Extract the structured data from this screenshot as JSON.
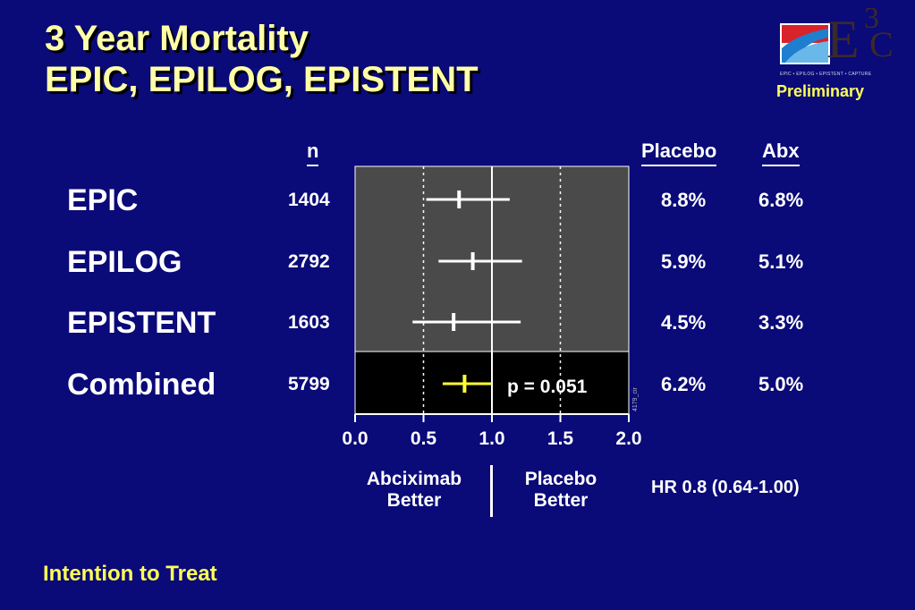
{
  "slide": {
    "title_line1": "3 Year Mortality",
    "title_line2": "EPIC, EPILOG, EPISTENT",
    "logo_superscript": "3",
    "logo_letter_e": "E",
    "logo_letter_c": "C",
    "logo_tagline": "EPIC • EPILOG • EPISTENT • CAPTURE",
    "status": "Preliminary",
    "footer": "Intention to Treat",
    "hr_text": "HR 0.8 (0.64-1.00)",
    "left_direction": [
      "Abciximab",
      "Better"
    ],
    "right_direction": [
      "Placebo",
      "Better"
    ],
    "watermark": "4179_cir"
  },
  "columns": {
    "n": "n",
    "placebo": "Placebo",
    "abx": "Abx"
  },
  "colors": {
    "background": "#0a0a78",
    "title": "#ffffa8",
    "highlight": "#ffff55",
    "panel_trials": "#4a4a4a",
    "panel_combined": "#000000",
    "trial_marker": "#ffffff",
    "combined_marker": "#ffff33"
  },
  "chart_data": {
    "type": "forest",
    "xlim": [
      0,
      2
    ],
    "xticks": [
      "0.0",
      "0.5",
      "1.0",
      "1.5",
      "2.0"
    ],
    "reference_line": 1.0,
    "dashed_lines": [
      0.5,
      1.5
    ],
    "annotation": "p = 0.051",
    "rows": [
      {
        "label": "EPIC",
        "n": "1404",
        "hr": 0.76,
        "lo": 0.52,
        "hi": 1.13,
        "placebo": "8.8%",
        "abx": "6.8%",
        "combined": false
      },
      {
        "label": "EPILOG",
        "n": "2792",
        "hr": 0.86,
        "lo": 0.61,
        "hi": 1.22,
        "placebo": "5.9%",
        "abx": "5.1%",
        "combined": false
      },
      {
        "label": "EPISTENT",
        "n": "1603",
        "hr": 0.72,
        "lo": 0.42,
        "hi": 1.21,
        "placebo": "4.5%",
        "abx": "3.3%",
        "combined": false
      },
      {
        "label": "Combined",
        "n": "5799",
        "hr": 0.8,
        "lo": 0.64,
        "hi": 1.0,
        "placebo": "6.2%",
        "abx": "5.0%",
        "combined": true
      }
    ]
  }
}
